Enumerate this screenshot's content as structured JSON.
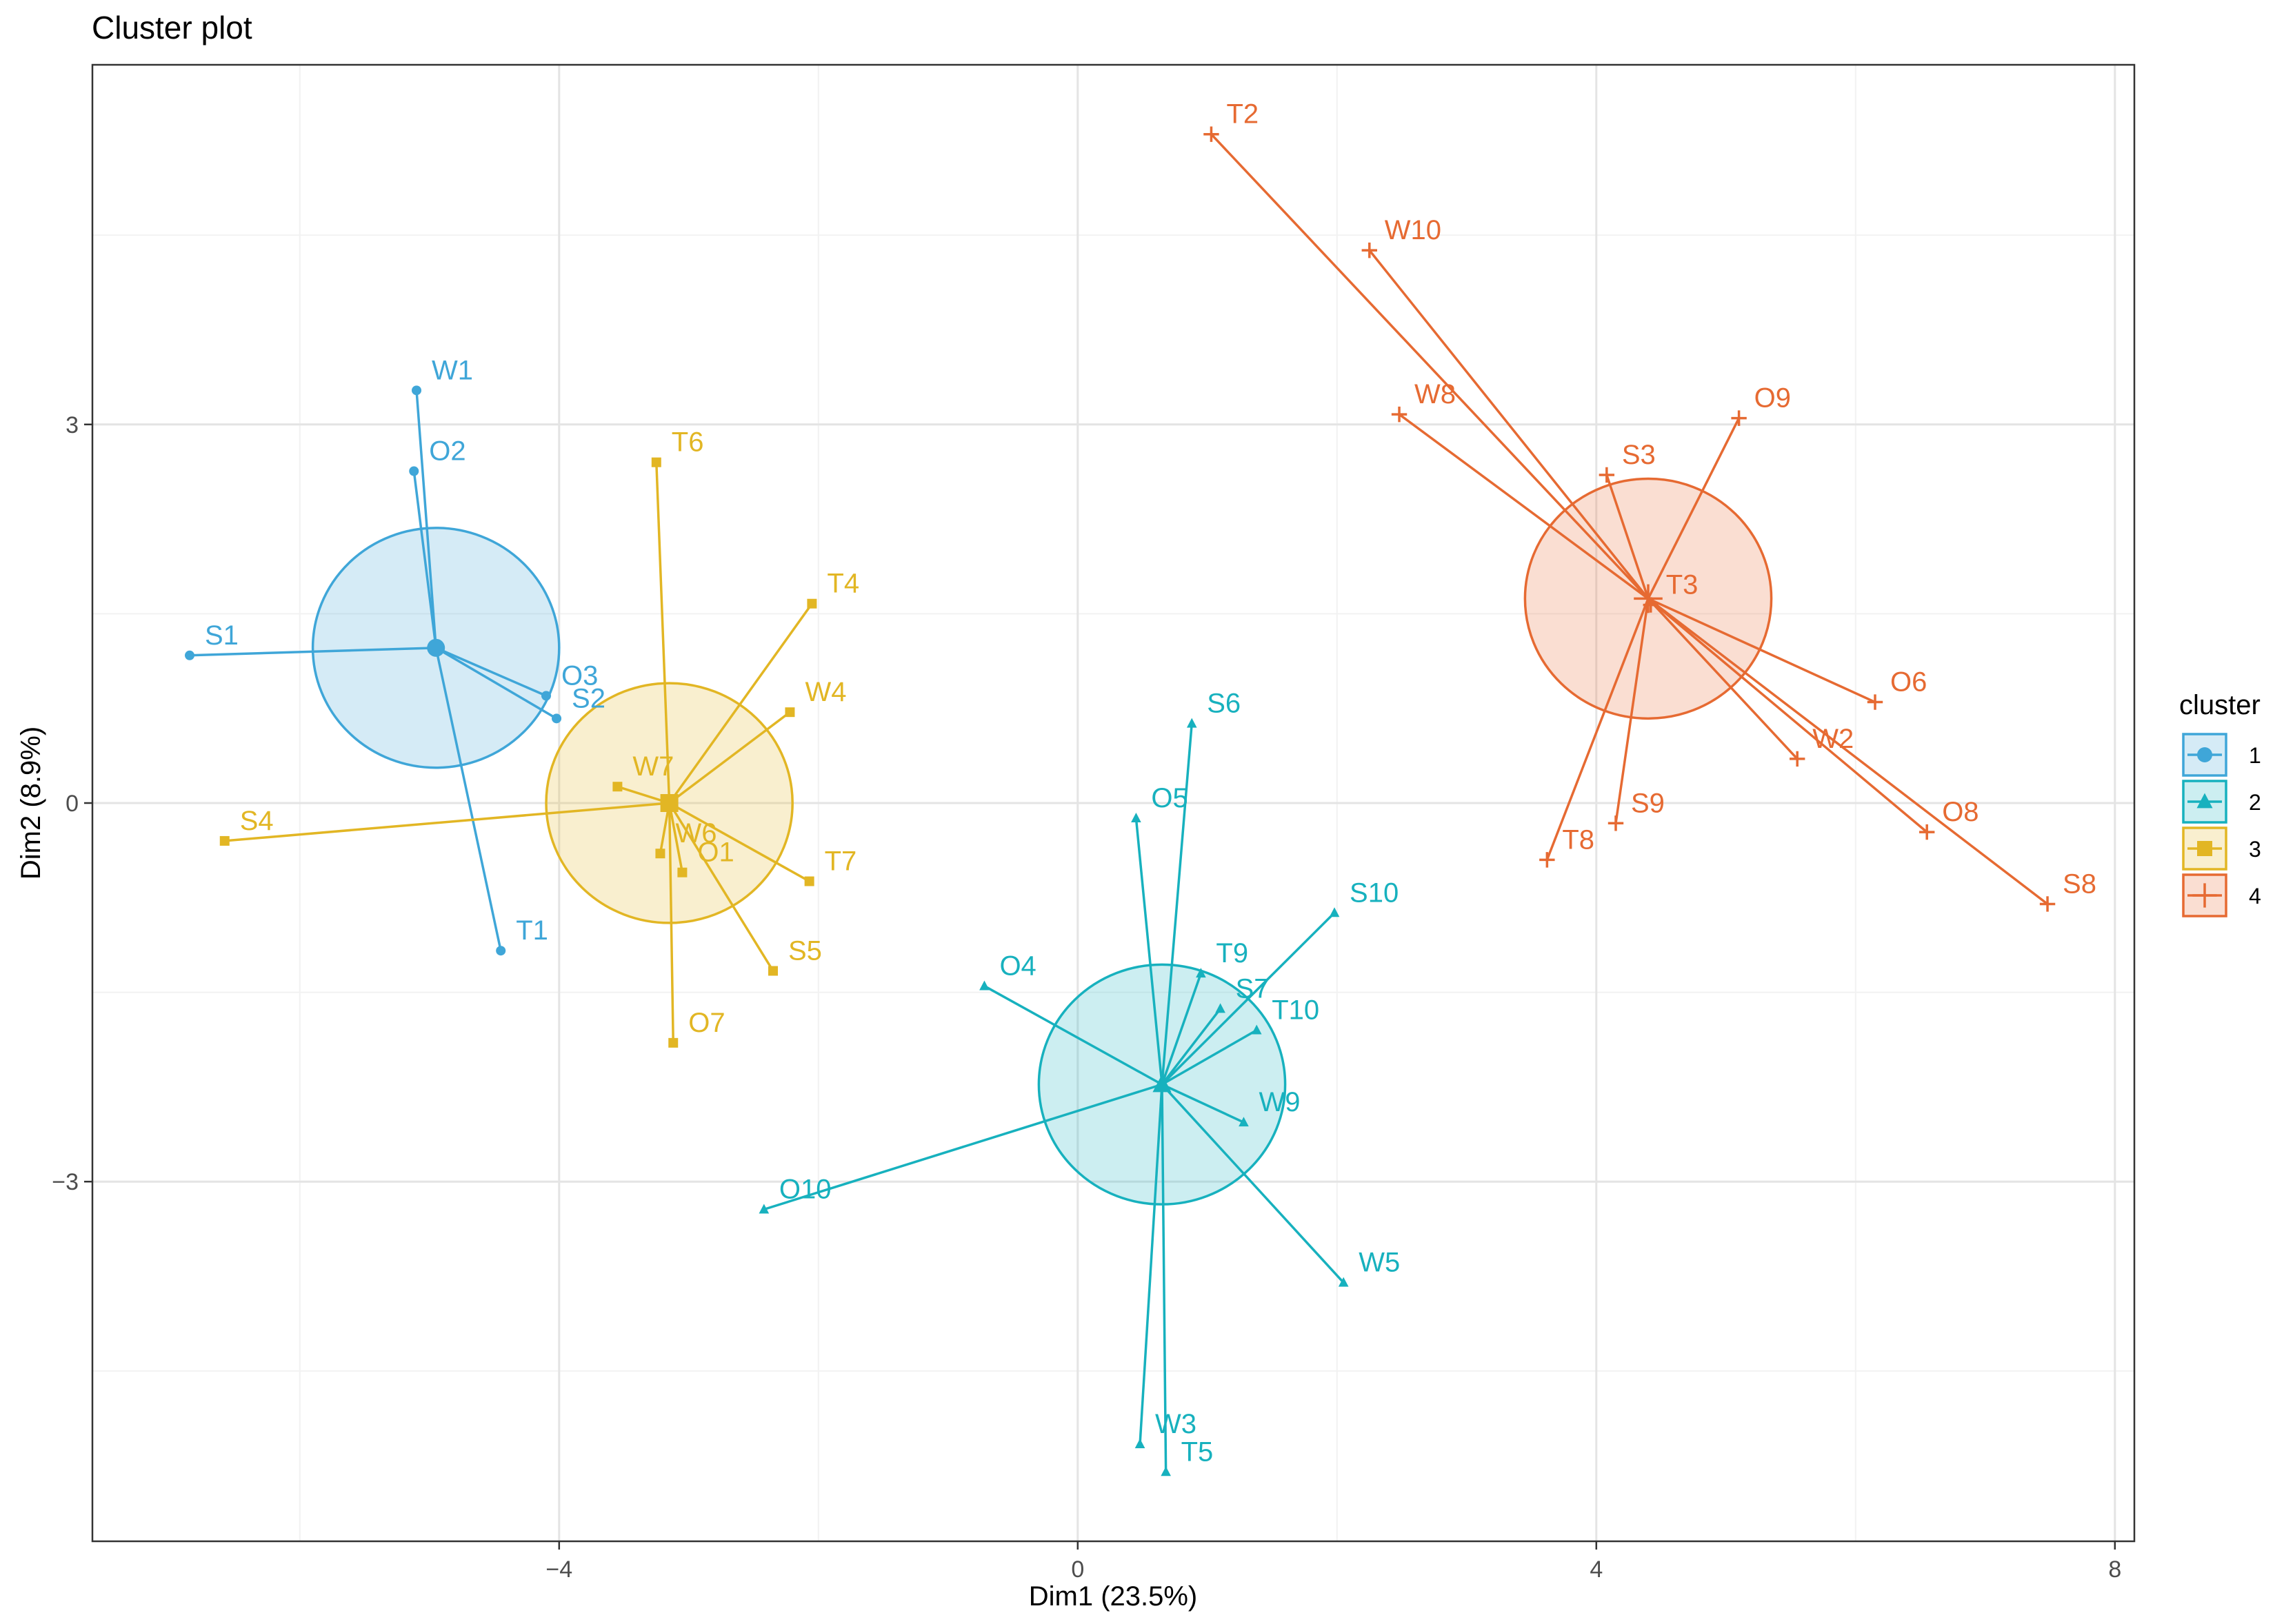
{
  "chart_data": {
    "type": "scatter",
    "title": "Cluster plot",
    "xlabel": "Dim1 (23.5%)",
    "ylabel": "Dim2 (8.9%)",
    "xlim": [
      -7.6,
      8.15
    ],
    "ylim": [
      -5.85,
      5.85
    ],
    "x_ticks": [
      -4,
      0,
      4,
      8
    ],
    "y_ticks": [
      -3,
      0,
      3
    ],
    "x_minor": [
      -6,
      -2,
      2,
      6
    ],
    "y_minor": [
      -4.5,
      -1.5,
      1.5,
      4.5
    ],
    "grid": true,
    "legend": {
      "title": "cluster",
      "position": "right"
    },
    "clusters": [
      {
        "name": "1",
        "color": "#3fa6d8",
        "marker": "circle",
        "center": {
          "x": -4.95,
          "y": 1.23
        },
        "radius": 0.95,
        "points": [
          {
            "label": "W1",
            "x": -5.1,
            "y": 3.27
          },
          {
            "label": "O2",
            "x": -5.12,
            "y": 2.63
          },
          {
            "label": "S1",
            "x": -6.85,
            "y": 1.17
          },
          {
            "label": "O3",
            "x": -4.1,
            "y": 0.85
          },
          {
            "label": "S2",
            "x": -4.02,
            "y": 0.67
          },
          {
            "label": "T1",
            "x": -4.45,
            "y": -1.17
          }
        ]
      },
      {
        "name": "2",
        "color": "#17b1be",
        "marker": "triangle",
        "center": {
          "x": 0.65,
          "y": -2.23
        },
        "radius": 0.95,
        "points": [
          {
            "label": "S6",
            "x": 0.88,
            "y": 0.63
          },
          {
            "label": "O5",
            "x": 0.45,
            "y": -0.12
          },
          {
            "label": "S10",
            "x": 1.98,
            "y": -0.87
          },
          {
            "label": "T9",
            "x": 0.95,
            "y": -1.35
          },
          {
            "label": "S7",
            "x": 1.1,
            "y": -1.63
          },
          {
            "label": "O4",
            "x": -0.72,
            "y": -1.45
          },
          {
            "label": "T10",
            "x": 1.38,
            "y": -1.8
          },
          {
            "label": "W9",
            "x": 1.28,
            "y": -2.53
          },
          {
            "label": "O10",
            "x": -2.42,
            "y": -3.22
          },
          {
            "label": "W5",
            "x": 2.05,
            "y": -3.8
          },
          {
            "label": "W3",
            "x": 0.48,
            "y": -5.08
          },
          {
            "label": "T5",
            "x": 0.68,
            "y": -5.3
          }
        ]
      },
      {
        "name": "3",
        "color": "#e2b624",
        "marker": "square",
        "center": {
          "x": -3.15,
          "y": 0.0
        },
        "radius": 0.95,
        "points": [
          {
            "label": "T6",
            "x": -3.25,
            "y": 2.7
          },
          {
            "label": "T4",
            "x": -2.05,
            "y": 1.58
          },
          {
            "label": "W4",
            "x": -2.22,
            "y": 0.72
          },
          {
            "label": "W7",
            "x": -3.55,
            "y": 0.13
          },
          {
            "label": "S4",
            "x": -6.58,
            "y": -0.3
          },
          {
            "label": "W6",
            "x": -3.22,
            "y": -0.4
          },
          {
            "label": "O1",
            "x": -3.05,
            "y": -0.55
          },
          {
            "label": "T7",
            "x": -2.07,
            "y": -0.62
          },
          {
            "label": "S5",
            "x": -2.35,
            "y": -1.33
          },
          {
            "label": "O7",
            "x": -3.12,
            "y": -1.9
          }
        ]
      },
      {
        "name": "4",
        "color": "#e66a32",
        "marker": "plus",
        "center": {
          "x": 4.4,
          "y": 1.62
        },
        "radius": 0.95,
        "points": [
          {
            "label": "T2",
            "x": 1.03,
            "y": 5.3
          },
          {
            "label": "W10",
            "x": 2.25,
            "y": 4.38
          },
          {
            "label": "W8",
            "x": 2.48,
            "y": 3.08
          },
          {
            "label": "O9",
            "x": 5.1,
            "y": 3.05
          },
          {
            "label": "S3",
            "x": 4.08,
            "y": 2.6
          },
          {
            "label": "T3",
            "x": 4.42,
            "y": 1.57
          },
          {
            "label": "O6",
            "x": 6.15,
            "y": 0.8
          },
          {
            "label": "W2",
            "x": 5.55,
            "y": 0.35
          },
          {
            "label": "O8",
            "x": 6.55,
            "y": -0.23
          },
          {
            "label": "S9",
            "x": 4.15,
            "y": -0.16
          },
          {
            "label": "T8",
            "x": 3.62,
            "y": -0.45
          },
          {
            "label": "S8",
            "x": 7.48,
            "y": -0.8
          }
        ]
      }
    ]
  }
}
